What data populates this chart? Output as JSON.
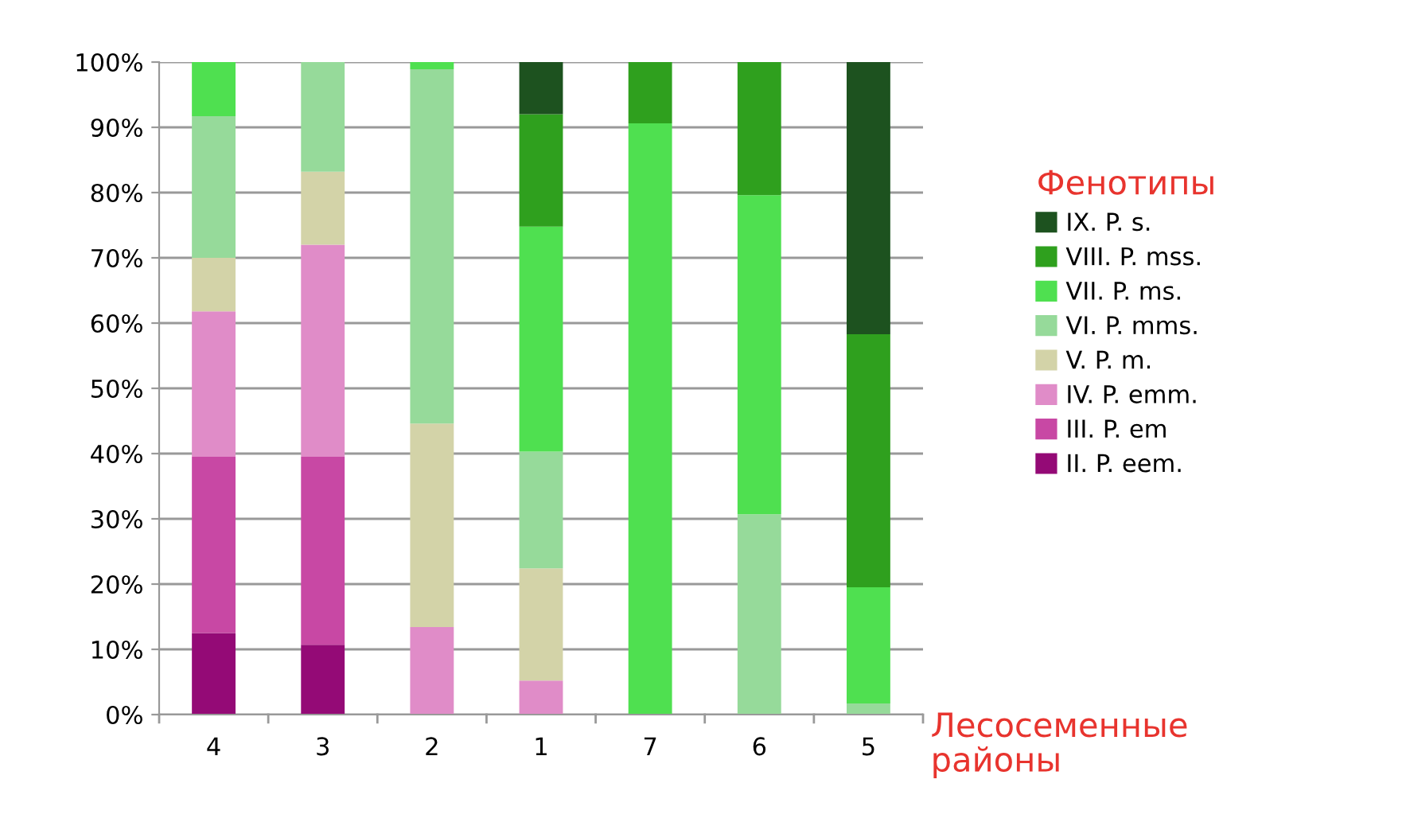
{
  "chart_data": {
    "type": "bar",
    "stacked": true,
    "categories": [
      "4",
      "3",
      "2",
      "1",
      "7",
      "6",
      "5"
    ],
    "xlabel": "Лесосеменные\nрайоны",
    "legend_title": "Фенотипы",
    "legend": "right",
    "grid": "y",
    "ylim": [
      0,
      100
    ],
    "yticks": [
      {
        "value": 0,
        "label": "0%"
      },
      {
        "value": 10,
        "label": "10%"
      },
      {
        "value": 20,
        "label": "20%"
      },
      {
        "value": 30,
        "label": "30%"
      },
      {
        "value": 40,
        "label": "40%"
      },
      {
        "value": 50,
        "label": "50%"
      },
      {
        "value": 60,
        "label": "60%"
      },
      {
        "value": 70,
        "label": "70%"
      },
      {
        "value": 80,
        "label": "80%"
      },
      {
        "value": 90,
        "label": "90%"
      },
      {
        "value": 100,
        "label": "100%"
      }
    ],
    "series": [
      {
        "name": "II. P. eem.",
        "color": "#940a76",
        "values": [
          12.5,
          10.7,
          0,
          0,
          0,
          0,
          0
        ]
      },
      {
        "name": "III. P. em",
        "color": "#c848a4",
        "values": [
          27,
          28.8,
          0,
          0,
          0,
          0,
          0
        ]
      },
      {
        "name": "IV. P. emm.",
        "color": "#e08cc8",
        "values": [
          22.3,
          32.5,
          13.4,
          5.2,
          0,
          0,
          0
        ]
      },
      {
        "name": "V. P. m.",
        "color": "#d3d3a8",
        "values": [
          8.2,
          11.2,
          31.2,
          17.2,
          0,
          0,
          0
        ]
      },
      {
        "name": "VI. P. mms.",
        "color": "#96da9a",
        "values": [
          21.7,
          16.8,
          54.3,
          17.9,
          0,
          30.7,
          1.7
        ]
      },
      {
        "name": "VII. P. ms.",
        "color": "#4fe050",
        "values": [
          8.3,
          0,
          1.1,
          34.5,
          90.6,
          48.9,
          17.8
        ]
      },
      {
        "name": "VIII. P. mss.",
        "color": "#2fa01e",
        "values": [
          0,
          0,
          0,
          17.2,
          9.4,
          20.4,
          38.8
        ]
      },
      {
        "name": "IX. P. s.",
        "color": "#1d521f",
        "values": [
          0,
          0,
          0,
          8,
          0,
          0,
          41.7
        ]
      }
    ]
  }
}
